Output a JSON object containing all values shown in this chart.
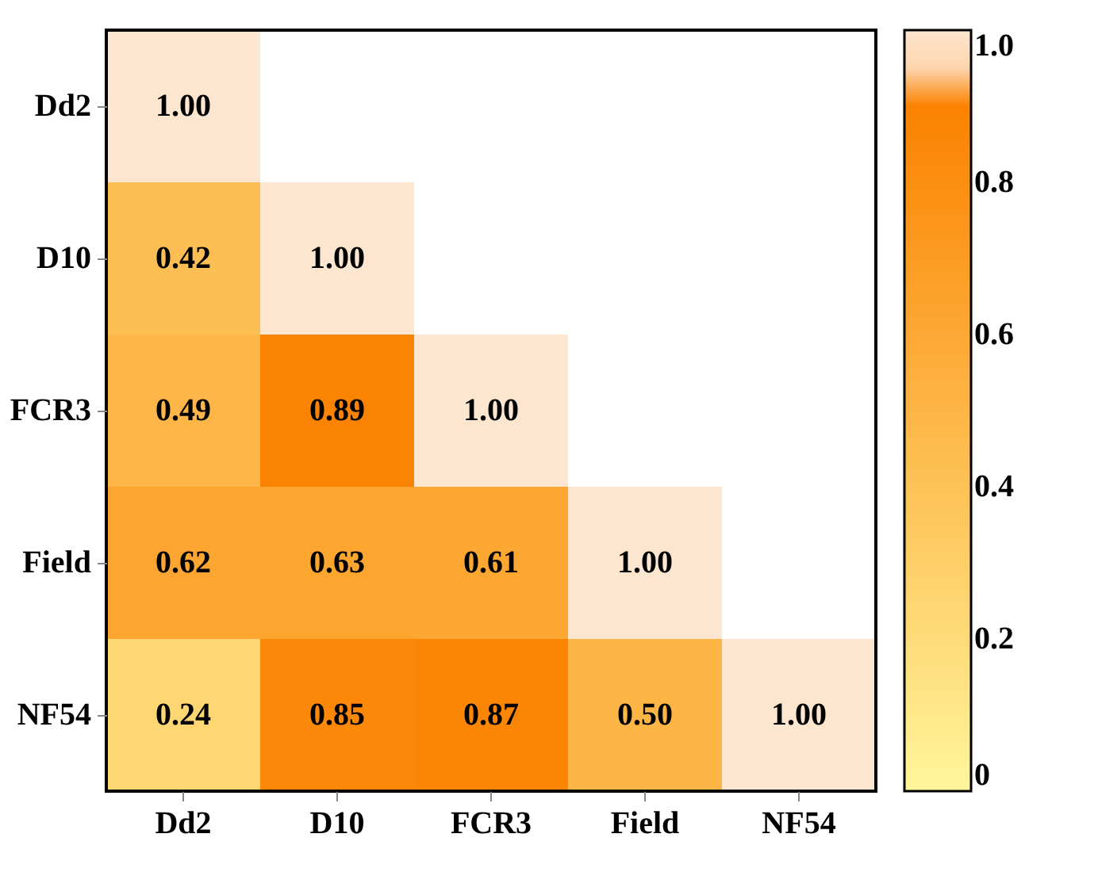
{
  "chart_data": {
    "type": "heatmap",
    "categories": [
      "Dd2",
      "D10",
      "FCR3",
      "Field",
      "NF54"
    ],
    "y_categories": [
      "Dd2",
      "D10",
      "FCR3",
      "Field",
      "NF54"
    ],
    "cells": [
      [
        1.0,
        null,
        null,
        null,
        null
      ],
      [
        0.42,
        1.0,
        null,
        null,
        null
      ],
      [
        0.49,
        0.89,
        1.0,
        null,
        null
      ],
      [
        0.62,
        0.63,
        0.61,
        1.0,
        null
      ],
      [
        0.24,
        0.85,
        0.87,
        0.5,
        1.0
      ]
    ],
    "cell_labels": [
      [
        "1.00",
        null,
        null,
        null,
        null
      ],
      [
        "0.42",
        "1.00",
        null,
        null,
        null
      ],
      [
        "0.49",
        "0.89",
        "1.00",
        null,
        null
      ],
      [
        "0.62",
        "0.63",
        "0.61",
        "1.00",
        null
      ],
      [
        "0.24",
        "0.85",
        "0.87",
        "0.50",
        "1.00"
      ]
    ],
    "clim": [
      0,
      1
    ],
    "cticks": [
      0,
      0.2,
      0.4,
      0.6,
      0.8,
      {
        "value": 1,
        "label": "1.0"
      }
    ],
    "data_labels": true,
    "grid": false
  }
}
